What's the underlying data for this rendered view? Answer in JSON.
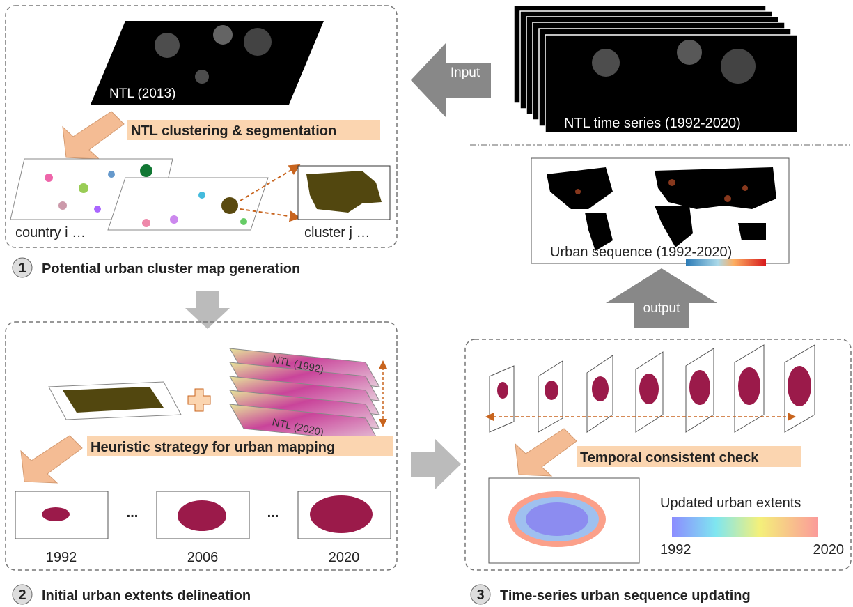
{
  "panel1": {
    "step": "1",
    "title": "Potential urban cluster map generation",
    "ntl_label": "NTL (2013)",
    "process": "NTL clustering & segmentation",
    "country_label": "country i …",
    "cluster_label": "cluster j …"
  },
  "input": {
    "arrow_label": "Input",
    "series_label": "NTL time series (1992-2020)"
  },
  "output": {
    "map_label": "Urban sequence (1992-2020)",
    "arrow_label": "output"
  },
  "panel2": {
    "step": "2",
    "title": "Initial urban extents delineation",
    "layer_labels": [
      "NTL (1992)",
      "NTL (2020)"
    ],
    "process": "Heuristic strategy for urban mapping",
    "years": [
      "1992",
      "2006",
      "2020"
    ],
    "ellipses": [
      "...",
      "..."
    ]
  },
  "panel3": {
    "step": "3",
    "title": "Time-series urban sequence updating",
    "process": "Temporal consistent check",
    "legend_title": "Updated urban extents",
    "legend_min": "1992",
    "legend_max": "2020"
  }
}
